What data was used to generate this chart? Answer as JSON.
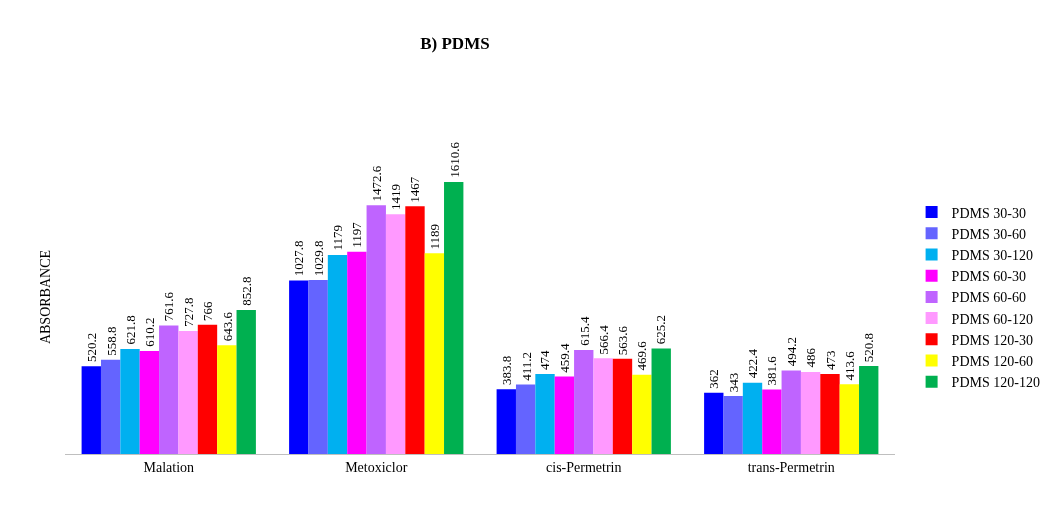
{
  "chart_data": {
    "type": "bar",
    "title": "B) PDMS",
    "ylabel": "ABSORBANCE",
    "categories": [
      "Malation",
      "Metoxiclor",
      "cis-Permetrin",
      "trans-Permetrin"
    ],
    "tick_labels": "x",
    "legend": "right",
    "data_labels": true,
    "series": [
      {
        "name": "PDMS 30-30",
        "color": "#0000ff",
        "values": [
          520.2,
          1027.8,
          383.8,
          362
        ]
      },
      {
        "name": "PDMS 30-60",
        "color": "#6464ff",
        "values": [
          558.8,
          1029.8,
          411.2,
          343
        ]
      },
      {
        "name": "PDMS 30-120",
        "color": "#00b0f0",
        "values": [
          621.8,
          1179,
          474,
          422.4
        ]
      },
      {
        "name": "PDMS 60-30",
        "color": "#ff00ff",
        "values": [
          610.2,
          1197,
          459.4,
          381.6
        ]
      },
      {
        "name": "PDMS 60-60",
        "color": "#bf64ff",
        "values": [
          761.6,
          1472.6,
          615.4,
          494.2
        ]
      },
      {
        "name": "PDMS 60-120",
        "color": "#ff99ff",
        "values": [
          727.8,
          1419,
          566.4,
          486
        ]
      },
      {
        "name": "PDMS 120-30",
        "color": "#ff0000",
        "values": [
          766,
          1467,
          563.6,
          473
        ]
      },
      {
        "name": "PDMS 120-60",
        "color": "#ffff00",
        "values": [
          643.6,
          1189,
          469.6,
          413.6
        ]
      },
      {
        "name": "PDMS 120-120",
        "color": "#00b050",
        "values": [
          852.8,
          1610.6,
          625.2,
          520.8
        ]
      }
    ]
  }
}
